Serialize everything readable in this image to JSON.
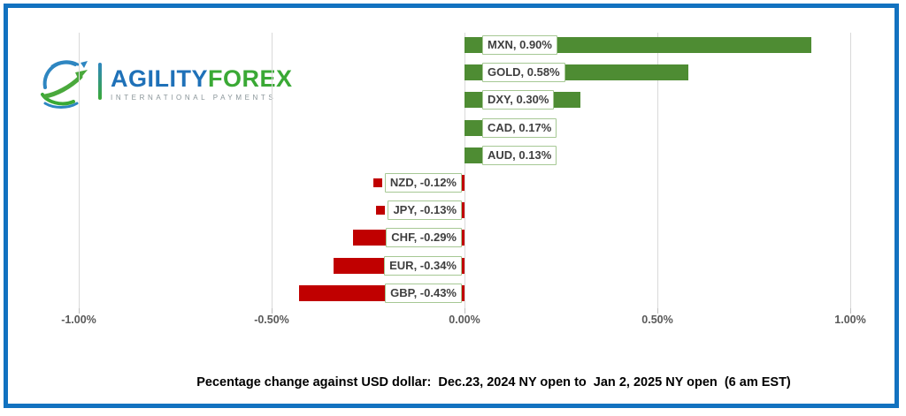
{
  "logo": {
    "brand_primary": "AGILITY",
    "brand_secondary": "FOREX",
    "tagline": "INTERNATIONAL PAYMENTS",
    "colors": {
      "blue": "#1f71b8",
      "green": "#3aa935",
      "tagline_gray": "#8a9599"
    }
  },
  "frame": {
    "border_color": "#1272c0"
  },
  "chart_data": {
    "type": "bar",
    "orientation": "horizontal",
    "title": "",
    "categories": [
      "MXN",
      "GOLD",
      "DXY",
      "CAD",
      "AUD",
      "NZD",
      "JPY",
      "CHF",
      "EUR",
      "GBP"
    ],
    "values": [
      0.9,
      0.58,
      0.3,
      0.17,
      0.13,
      -0.12,
      -0.13,
      -0.29,
      -0.34,
      -0.43
    ],
    "data_labels": [
      "MXN, 0.90%",
      "GOLD, 0.58%",
      "DXY, 0.30%",
      "CAD, 0.17%",
      "AUD, 0.13%",
      "NZD, -0.12%",
      "JPY, -0.13%",
      "CHF, -0.29%",
      "EUR, -0.34%",
      "GBP, -0.43%"
    ],
    "xlim": [
      -1.0,
      1.0
    ],
    "x_ticks": [
      {
        "label": "-1.00%",
        "value": -1.0
      },
      {
        "label": "-0.50%",
        "value": -0.5
      },
      {
        "label": "0.00%",
        "value": 0.0
      },
      {
        "label": "0.50%",
        "value": 0.5
      },
      {
        "label": "1.00%",
        "value": 1.0
      }
    ],
    "grid": "vertical",
    "legend": "none",
    "positive_color": "#4e8c33",
    "negative_color": "#c00000",
    "gridline_color": "#d9d9d9",
    "label_box_border_color": "#a6c894",
    "label_text_color": "#3f3f3f",
    "caption": "Pecentage change against USD dollar:  Dec.23, 2024 NY open to  Jan 2, 2025 NY open  (6 am EST)"
  }
}
